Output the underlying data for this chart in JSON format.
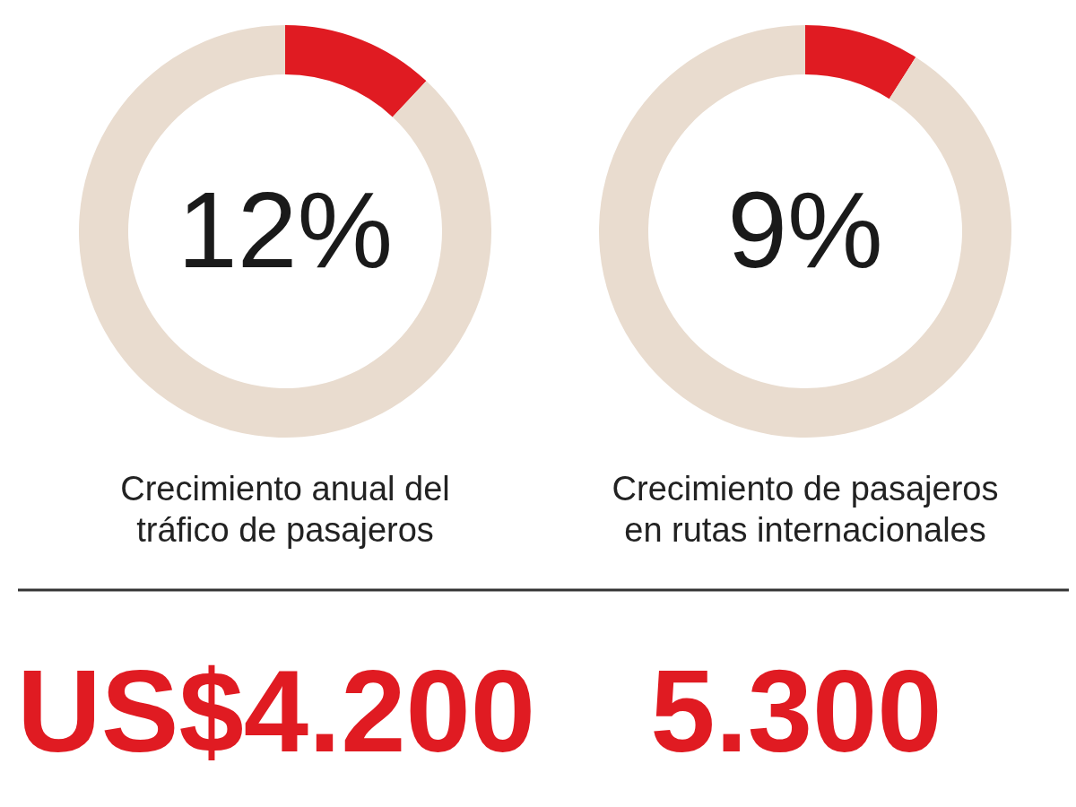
{
  "chart_data": [
    {
      "type": "donut",
      "title": "Crecimiento anual del tráfico de pasajeros",
      "categories": [
        null,
        null
      ],
      "values": [
        12,
        88
      ],
      "colors": [
        "#e01b22",
        "#e9dccf"
      ],
      "annotations": [
        "12%"
      ]
    },
    {
      "type": "donut",
      "title": "Crecimiento de pasajeros en rutas internacionales",
      "categories": [
        null,
        null
      ],
      "values": [
        9,
        91
      ],
      "colors": [
        "#e01b22",
        "#e9dccf"
      ],
      "annotations": [
        "9%"
      ]
    },
    {
      "type": "other",
      "annotations": [
        "US$4.200",
        "5.300"
      ]
    }
  ]
}
